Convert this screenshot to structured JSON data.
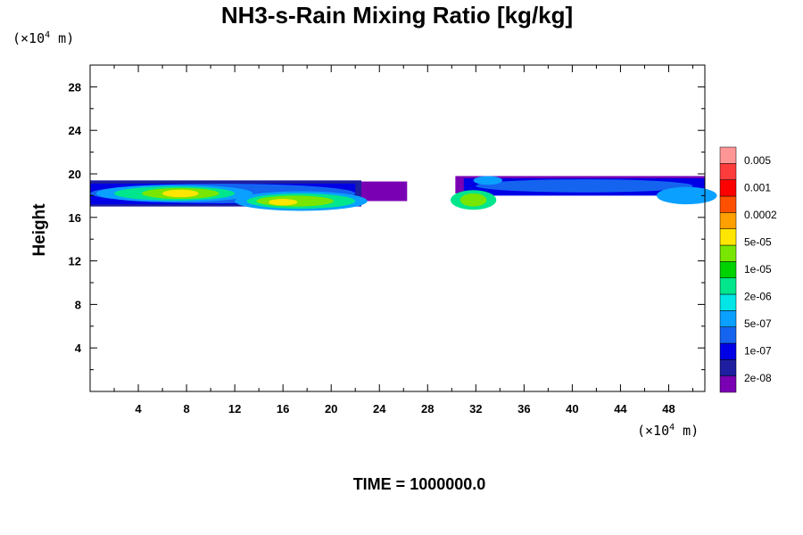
{
  "chart_data": {
    "type": "heatmap",
    "title": "NH3-s-Rain Mixing Ratio [kg/kg]",
    "ylabel": "Height",
    "x_unit": {
      "prefix": "(×10",
      "exp": "4",
      "suffix": " m)"
    },
    "y_unit": {
      "prefix": "(×10",
      "exp": "4",
      "suffix": " m)"
    },
    "xlim": [
      0,
      51
    ],
    "ylim": [
      0,
      30
    ],
    "x_ticks": [
      4,
      8,
      12,
      16,
      20,
      24,
      28,
      32,
      36,
      40,
      44,
      48
    ],
    "x_tick_labels": [
      "4",
      "8",
      "12",
      "16",
      "20",
      "24",
      "28",
      "32",
      "36",
      "40",
      "44",
      "48"
    ],
    "y_ticks": [
      4,
      8,
      12,
      16,
      20,
      24,
      28
    ],
    "y_tick_labels": [
      "4",
      "8",
      "12",
      "16",
      "20",
      "24",
      "28"
    ],
    "colorbar": {
      "levels_bottom_to_top": 12,
      "colors_bottom_to_top": [
        "#7a00b4",
        "#1e1ea0",
        "#0000e6",
        "#1464f0",
        "#0aa0ff",
        "#00e6e6",
        "#00e68c",
        "#00d200",
        "#78e600",
        "#ffe600",
        "#ffa000",
        "#ff5000",
        "#ff0000",
        "#ff3c3c",
        "#ff9696"
      ],
      "labels_bottom_to_top": [
        "2e-08",
        "1e-07",
        "5e-07",
        "2e-06",
        "1e-05",
        "5e-05",
        "0.0002",
        "0.001",
        "0.005"
      ]
    },
    "regions": [
      {
        "name": "left-band",
        "x_range": [
          0,
          26.5
        ],
        "y_range": [
          16.5,
          20
        ],
        "level": "low-mid"
      },
      {
        "name": "left-core-a",
        "x_center": 7,
        "y_center": 18.3,
        "level": "1e-05"
      },
      {
        "name": "left-core-b",
        "x_center": 17,
        "y_center": 17.6,
        "level": "5e-05"
      },
      {
        "name": "right-band",
        "x_range": [
          30,
          51
        ],
        "y_range": [
          16.8,
          20
        ],
        "level": "low"
      },
      {
        "name": "right-core",
        "x_center": 31.5,
        "y_center": 17.6,
        "level": "1e-05"
      }
    ],
    "footer": "TIME = 1000000.0"
  }
}
